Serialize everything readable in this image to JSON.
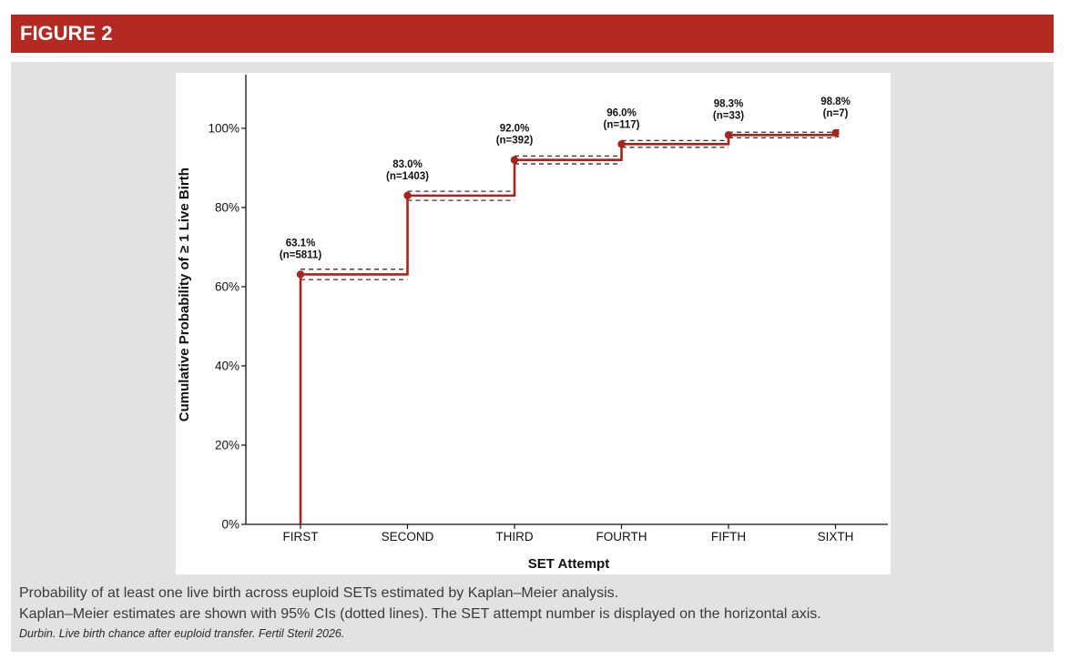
{
  "figure": {
    "header_label": "FIGURE 2",
    "caption_line1": "Probability of at least one live birth across euploid SETs estimated by Kaplan–Meier analysis.",
    "caption_line2": "Kaplan–Meier estimates are shown with 95% CIs (dotted lines). The SET attempt number is displayed on the horizontal axis.",
    "citation": "Durbin. Live birth chance after euploid transfer. Fertil Steril 2026."
  },
  "colors": {
    "header_bg": "#b42a22",
    "step_line": "#a8231c",
    "ci_line": "#333333"
  },
  "chart_data": {
    "type": "line",
    "step": true,
    "xlabel": "SET Attempt",
    "ylabel": "Cumulative Probability of ≥ 1 Live Birth",
    "categories": [
      "FIRST",
      "SECOND",
      "THIRD",
      "FOURTH",
      "FIFTH",
      "SIXTH"
    ],
    "ylim": [
      0,
      1.14
    ],
    "yticks": [
      0,
      0.2,
      0.4,
      0.6,
      0.8,
      1.0
    ],
    "ytick_labels": [
      "0%",
      "20%",
      "40%",
      "60%",
      "80%",
      "100%"
    ],
    "grid": false,
    "series": [
      {
        "values": [
          0.631,
          0.83,
          0.92,
          0.96,
          0.983,
          0.988
        ],
        "ci_lower": [
          0.618,
          0.818,
          0.91,
          0.952,
          0.976,
          0.979
        ],
        "ci_upper": [
          0.644,
          0.841,
          0.93,
          0.969,
          0.99,
          0.996
        ],
        "value_labels": [
          "63.1%",
          "83.0%",
          "92.0%",
          "96.0%",
          "98.3%",
          "98.8%"
        ],
        "n_labels": [
          "(n=5811)",
          "(n=1403)",
          "(n=392)",
          "(n=117)",
          "(n=33)",
          "(n=7)"
        ]
      }
    ]
  }
}
